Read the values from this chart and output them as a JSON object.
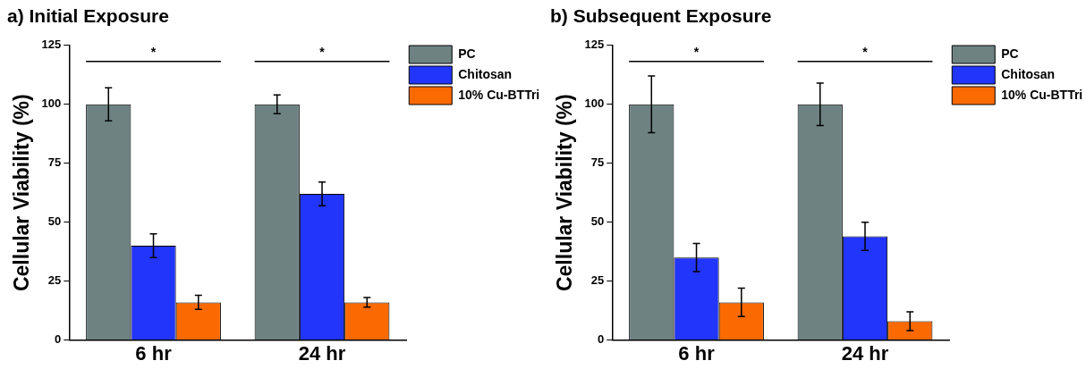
{
  "chart_data": [
    {
      "type": "bar",
      "title": "a) Initial Exposure",
      "ylabel": "Cellular Viability (%)",
      "categories": [
        "6 hr",
        "24 hr"
      ],
      "series": [
        {
          "name": "PC",
          "color": "#6e8282",
          "values": [
            100,
            100
          ],
          "errors": [
            7,
            4
          ]
        },
        {
          "name": "Chitosan",
          "color": "#2135fb",
          "values": [
            40,
            62
          ],
          "errors": [
            5,
            5
          ]
        },
        {
          "name": "10% Cu-BTTri",
          "color": "#fb6a01",
          "values": [
            16,
            16
          ],
          "errors": [
            3,
            2
          ]
        }
      ],
      "ylim": [
        0,
        125
      ],
      "yticks": [
        0,
        25,
        50,
        75,
        100,
        125
      ],
      "grid": false,
      "legend": "top right",
      "annotations": [
        "*",
        "*"
      ]
    },
    {
      "type": "bar",
      "title": "b) Subsequent Exposure",
      "ylabel": "Cellular Viability (%)",
      "categories": [
        "6 hr",
        "24 hr"
      ],
      "series": [
        {
          "name": "PC",
          "color": "#6e8282",
          "values": [
            100,
            100
          ],
          "errors": [
            12,
            9
          ]
        },
        {
          "name": "Chitosan",
          "color": "#2135fb",
          "values": [
            35,
            44
          ],
          "errors": [
            6,
            6
          ]
        },
        {
          "name": "10% Cu-BTTri",
          "color": "#fb6a01",
          "values": [
            16,
            8
          ],
          "errors": [
            6,
            4
          ]
        }
      ],
      "ylim": [
        0,
        125
      ],
      "yticks": [
        0,
        25,
        50,
        75,
        100,
        125
      ],
      "grid": false,
      "legend": "top right",
      "annotations": [
        "*",
        "*"
      ]
    }
  ]
}
